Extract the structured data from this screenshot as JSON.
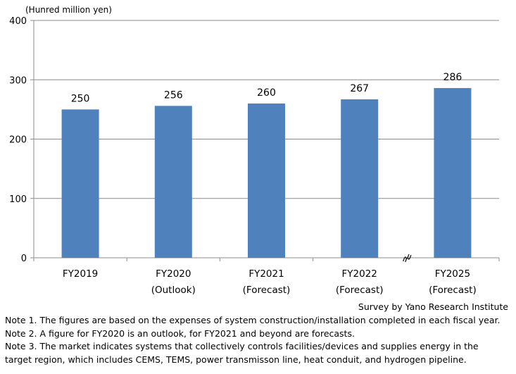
{
  "chart_data": {
    "type": "bar",
    "unit_label": "(Hunred million yen)",
    "categories": [
      {
        "name": "FY2019",
        "sub": ""
      },
      {
        "name": "FY2020",
        "sub": "(Outlook)"
      },
      {
        "name": "FY2021",
        "sub": "(Forecast)"
      },
      {
        "name": "FY2022",
        "sub": "(Forecast)"
      },
      {
        "name": "FY2025",
        "sub": "(Forecast)"
      }
    ],
    "values": [
      250,
      256,
      260,
      267,
      286
    ],
    "ylim": [
      0,
      400
    ],
    "yticks": [
      0,
      100,
      200,
      300,
      400
    ],
    "grid": true,
    "axis_break_between": [
      "FY2022",
      "FY2025"
    ],
    "bar_color": "#4f81bd",
    "grid_color": "#8c8c8c"
  },
  "source": "Survey by Yano Research Institute",
  "notes": [
    "Note 1.  The figures are based on the expenses of system construction/installation completed in each fiscal year.",
    "Note 2.  A figure for FY2020 is an outlook, for FY2021 and beyond are forecasts.",
    "Note 3.  The market indicates systems that collectively controls facilities/devices and supplies energy in the",
    "target region, which includes CEMS, TEMS, power transmisson line, heat conduit, and hydrogen pipeline."
  ]
}
